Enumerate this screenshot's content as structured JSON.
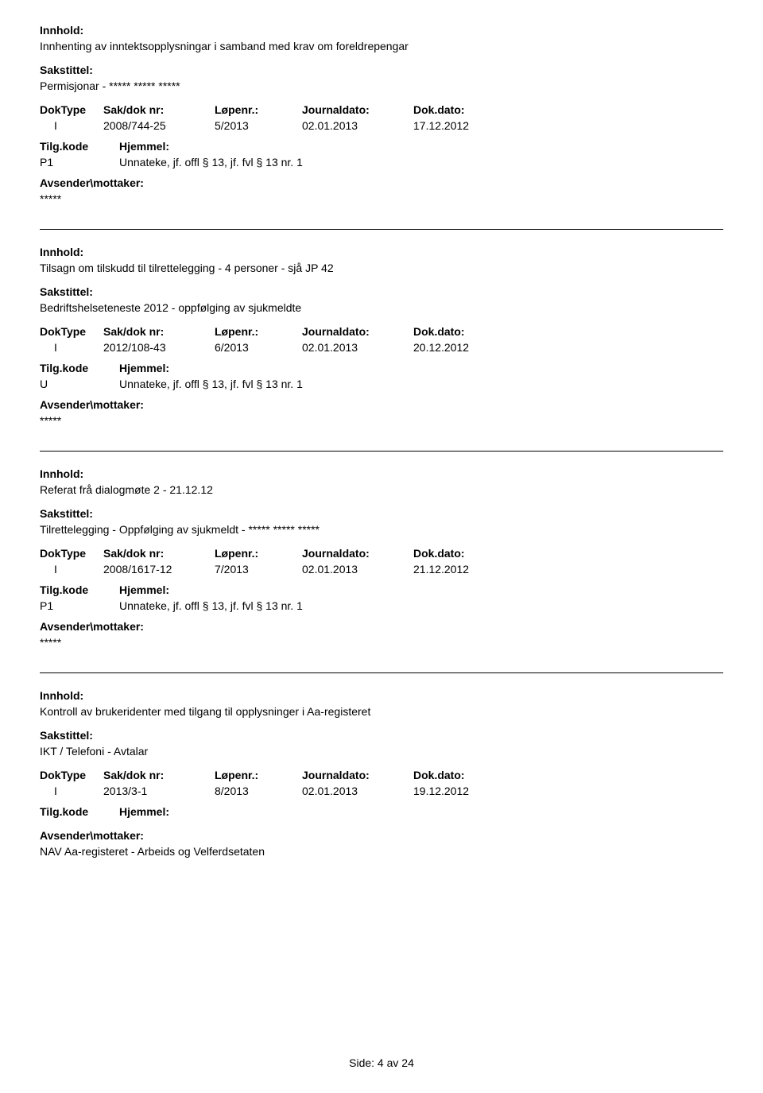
{
  "labels": {
    "innhold": "Innhold:",
    "sakstittel": "Sakstittel:",
    "doktype": "DokType",
    "sakdok": "Sak/dok nr:",
    "lopenr": "Løpenr.:",
    "journal": "Journaldato:",
    "dokdato": "Dok.dato:",
    "tilgkode": "Tilg.kode",
    "hjemmel": "Hjemmel:",
    "avsender": "Avsender\\mottaker:"
  },
  "entries": [
    {
      "innhold": "Innhenting av inntektsopplysningar i samband med krav om foreldrepengar",
      "sakstittel": "Permisjonar - ***** ***** *****",
      "doktype": "I",
      "sakdok": "2008/744-25",
      "lopenr": "5/2013",
      "journal": "02.01.2013",
      "dokdato": "17.12.2012",
      "tilgkode": "P1",
      "hjemmel": "Unnateke, jf. offl § 13, jf. fvl § 13 nr. 1",
      "avsender": "*****"
    },
    {
      "innhold": "Tilsagn om tilskudd til tilrettelegging - 4 personer - sjå JP 42",
      "sakstittel": "Bedriftshelseteneste 2012 - oppfølging av sjukmeldte",
      "doktype": "I",
      "sakdok": "2012/108-43",
      "lopenr": "6/2013",
      "journal": "02.01.2013",
      "dokdato": "20.12.2012",
      "tilgkode": "U",
      "hjemmel": "Unnateke, jf. offl § 13, jf. fvl § 13 nr. 1",
      "avsender": "*****"
    },
    {
      "innhold": "Referat frå dialogmøte 2 - 21.12.12",
      "sakstittel": "Tilrettelegging - Oppfølging av sjukmeldt - ***** ***** *****",
      "doktype": "I",
      "sakdok": "2008/1617-12",
      "lopenr": "7/2013",
      "journal": "02.01.2013",
      "dokdato": "21.12.2012",
      "tilgkode": "P1",
      "hjemmel": "Unnateke, jf. offl § 13, jf. fvl § 13 nr. 1",
      "avsender": "*****"
    },
    {
      "innhold": "Kontroll av brukeridenter med tilgang til opplysninger i Aa-registeret",
      "sakstittel": "IKT / Telefoni - Avtalar",
      "doktype": "I",
      "sakdok": "2013/3-1",
      "lopenr": "8/2013",
      "journal": "02.01.2013",
      "dokdato": "19.12.2012",
      "tilgkode": "",
      "hjemmel": "",
      "avsender": "NAV Aa-registeret - Arbeids og Velferdsetaten"
    }
  ],
  "footer": "Side: 4 av 24"
}
